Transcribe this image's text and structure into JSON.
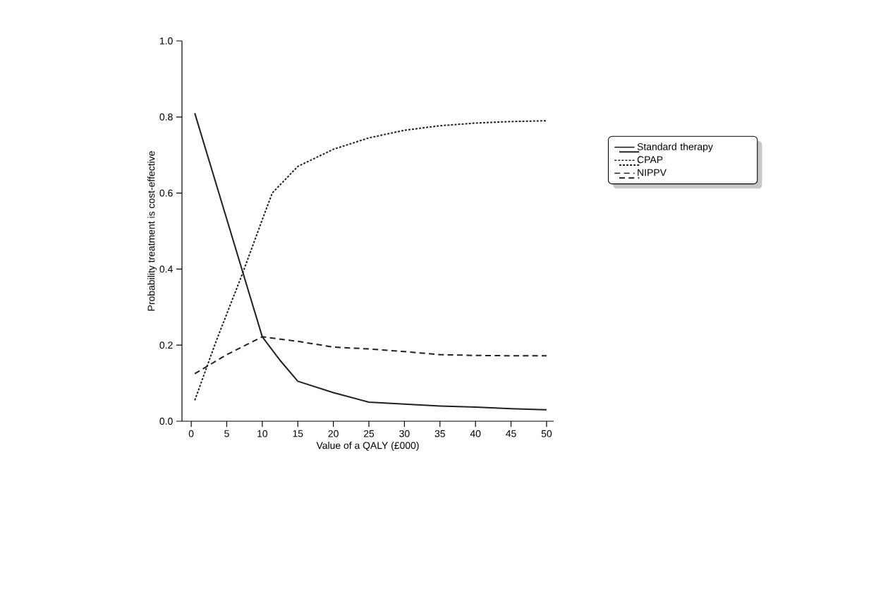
{
  "chart_data": {
    "type": "line",
    "xlabel": "Value of a QALY (£000)",
    "ylabel": "Probability treatment is cost-effective",
    "xlim": [
      -1.3,
      51
    ],
    "ylim": [
      0,
      1
    ],
    "xticks": [
      0,
      5,
      10,
      15,
      20,
      25,
      30,
      35,
      40,
      45,
      50
    ],
    "yticks": [
      {
        "value": 0,
        "label": "0.0"
      },
      {
        "value": 0.2,
        "label": "0.2"
      },
      {
        "value": 0.4,
        "label": "0.4"
      },
      {
        "value": 0.6,
        "label": "0.6"
      },
      {
        "value": 0.8,
        "label": "0.8"
      },
      {
        "value": 1,
        "label": "1.0"
      }
    ],
    "grid": false,
    "legend": "right",
    "marker": "none",
    "series": [
      {
        "name": "Standard therapy",
        "color": "#231f20",
        "line_style": "solid",
        "x": [
          0.5,
          10,
          12.5,
          15,
          20,
          25,
          30,
          35,
          40,
          45,
          50
        ],
        "values": [
          0.81,
          0.222,
          0.16,
          0.105,
          0.075,
          0.05,
          0.045,
          0.04,
          0.037,
          0.033,
          0.03
        ]
      },
      {
        "name": "CPAP",
        "color": "#231f20",
        "line_style": "dotted",
        "x": [
          0.5,
          3.5,
          7.25,
          10,
          11.4,
          15,
          20,
          25,
          30,
          35,
          40,
          45,
          50
        ],
        "values": [
          0.055,
          0.21,
          0.39,
          0.53,
          0.6,
          0.67,
          0.715,
          0.745,
          0.765,
          0.777,
          0.784,
          0.788,
          0.79
        ]
      },
      {
        "name": "NIPPV",
        "color": "#231f20",
        "line_style": "dashed",
        "x": [
          0.5,
          5,
          10,
          15,
          20,
          25,
          30,
          35,
          40,
          45,
          50
        ],
        "values": [
          0.125,
          0.175,
          0.222,
          0.21,
          0.195,
          0.19,
          0.183,
          0.175,
          0.173,
          0.172,
          0.172
        ]
      }
    ]
  }
}
